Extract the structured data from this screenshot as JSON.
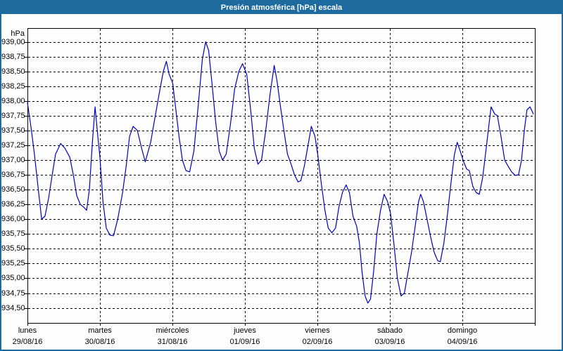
{
  "window": {
    "title": "Presión atmosférica [hPa] escala"
  },
  "chart_data": {
    "type": "line",
    "title": "Presión atmosférica [hPa] escala",
    "legend": "none",
    "grid": "dashed-black",
    "colors": {
      "titlebar": "#1E6C9F",
      "window_border": "#1E6C9F",
      "background": "#FDFEFD",
      "line": "#0000C8",
      "grid": "#000000",
      "text": "#000000"
    },
    "y_axis": {
      "unit_label": "hPa",
      "min": 934.5,
      "max": 939.0,
      "step": 0.25,
      "tick_labels": [
        "939,00",
        "938,75",
        "938,50",
        "938,25",
        "938,00",
        "937,75",
        "937,50",
        "937,25",
        "937,00",
        "936,75",
        "936,50",
        "936,25",
        "936,00",
        "935,75",
        "935,50",
        "935,25",
        "935,00",
        "934,75",
        "934,50"
      ]
    },
    "x_axis": {
      "total_hours": 168,
      "days": [
        {
          "name": "lunes",
          "date": "29/08/16"
        },
        {
          "name": "martes",
          "date": "30/08/16"
        },
        {
          "name": "miércoles",
          "date": "31/08/16"
        },
        {
          "name": "jueves",
          "date": "01/09/16"
        },
        {
          "name": "viernes",
          "date": "02/09/16"
        },
        {
          "name": "sábado",
          "date": "03/09/16"
        },
        {
          "name": "domingo",
          "date": "04/09/16"
        }
      ]
    },
    "series": [
      {
        "name": "Presión atmosférica [hPa]",
        "color": "#0000C8",
        "points": [
          [
            0,
            937.97
          ],
          [
            1.2,
            937.55
          ],
          [
            2.3,
            937.1
          ],
          [
            3.5,
            936.55
          ],
          [
            4.7,
            936.0
          ],
          [
            5.8,
            936.05
          ],
          [
            7.0,
            936.35
          ],
          [
            8.2,
            936.75
          ],
          [
            9.3,
            937.1
          ],
          [
            11.0,
            937.28
          ],
          [
            12.4,
            937.2
          ],
          [
            14.0,
            937.05
          ],
          [
            15.2,
            936.75
          ],
          [
            16.3,
            936.4
          ],
          [
            17.5,
            936.25
          ],
          [
            18.7,
            936.2
          ],
          [
            19.6,
            936.15
          ],
          [
            20.5,
            936.5
          ],
          [
            21.5,
            937.3
          ],
          [
            22.4,
            937.9
          ],
          [
            23.3,
            937.4
          ],
          [
            24.0,
            937.05
          ],
          [
            25.0,
            936.3
          ],
          [
            26.1,
            935.85
          ],
          [
            27.3,
            935.73
          ],
          [
            28.5,
            935.72
          ],
          [
            29.9,
            936.0
          ],
          [
            31.5,
            936.45
          ],
          [
            32.7,
            936.9
          ],
          [
            33.8,
            937.4
          ],
          [
            35.0,
            937.57
          ],
          [
            36.4,
            937.5
          ],
          [
            37.8,
            937.2
          ],
          [
            39.0,
            936.97
          ],
          [
            40.8,
            937.3
          ],
          [
            42.5,
            937.8
          ],
          [
            43.9,
            938.2
          ],
          [
            45.0,
            938.5
          ],
          [
            46.0,
            938.67
          ],
          [
            46.9,
            938.45
          ],
          [
            48.1,
            938.3
          ],
          [
            48.8,
            938.0
          ],
          [
            50.2,
            937.4
          ],
          [
            51.3,
            937.0
          ],
          [
            52.5,
            936.82
          ],
          [
            53.7,
            936.8
          ],
          [
            55.1,
            937.15
          ],
          [
            56.5,
            937.9
          ],
          [
            57.9,
            938.7
          ],
          [
            59.0,
            939.0
          ],
          [
            60.0,
            938.85
          ],
          [
            61.1,
            938.3
          ],
          [
            62.3,
            937.65
          ],
          [
            63.5,
            937.15
          ],
          [
            64.6,
            937.0
          ],
          [
            65.8,
            937.1
          ],
          [
            67.2,
            937.6
          ],
          [
            68.6,
            938.2
          ],
          [
            70.0,
            938.5
          ],
          [
            71.2,
            938.63
          ],
          [
            72.6,
            938.45
          ],
          [
            74.0,
            937.8
          ],
          [
            75.1,
            937.2
          ],
          [
            76.3,
            936.93
          ],
          [
            77.5,
            937.0
          ],
          [
            78.9,
            937.5
          ],
          [
            80.3,
            938.1
          ],
          [
            81.7,
            938.6
          ],
          [
            82.6,
            938.35
          ],
          [
            83.8,
            937.9
          ],
          [
            84.9,
            937.5
          ],
          [
            86.1,
            937.1
          ],
          [
            87.3,
            936.93
          ],
          [
            88.4,
            936.75
          ],
          [
            89.6,
            936.63
          ],
          [
            90.5,
            936.65
          ],
          [
            91.7,
            936.9
          ],
          [
            92.9,
            937.25
          ],
          [
            94.0,
            937.57
          ],
          [
            95.2,
            937.4
          ],
          [
            96.1,
            937.1
          ],
          [
            97.3,
            936.6
          ],
          [
            98.5,
            936.15
          ],
          [
            99.6,
            935.85
          ],
          [
            100.8,
            935.77
          ],
          [
            102.0,
            935.85
          ],
          [
            103.1,
            936.2
          ],
          [
            104.3,
            936.45
          ],
          [
            105.5,
            936.58
          ],
          [
            106.6,
            936.45
          ],
          [
            107.8,
            936.05
          ],
          [
            109.0,
            935.88
          ],
          [
            109.9,
            935.6
          ],
          [
            110.8,
            935.1
          ],
          [
            111.8,
            934.7
          ],
          [
            112.7,
            934.58
          ],
          [
            113.6,
            934.65
          ],
          [
            114.6,
            935.1
          ],
          [
            115.7,
            935.75
          ],
          [
            116.9,
            936.15
          ],
          [
            118.1,
            936.42
          ],
          [
            119.2,
            936.3
          ],
          [
            120.2,
            936.1
          ],
          [
            121.3,
            935.6
          ],
          [
            122.5,
            935.0
          ],
          [
            123.7,
            934.7
          ],
          [
            124.8,
            934.75
          ],
          [
            126.0,
            935.1
          ],
          [
            127.2,
            935.45
          ],
          [
            128.3,
            935.85
          ],
          [
            129.5,
            936.3
          ],
          [
            130.2,
            936.42
          ],
          [
            131.1,
            936.3
          ],
          [
            132.3,
            936.0
          ],
          [
            133.5,
            935.7
          ],
          [
            134.6,
            935.45
          ],
          [
            135.8,
            935.3
          ],
          [
            136.7,
            935.28
          ],
          [
            137.9,
            935.6
          ],
          [
            139.1,
            936.1
          ],
          [
            140.2,
            936.6
          ],
          [
            141.4,
            937.1
          ],
          [
            142.3,
            937.3
          ],
          [
            143.3,
            937.15
          ],
          [
            144.2,
            937.0
          ],
          [
            145.4,
            936.85
          ],
          [
            146.3,
            936.82
          ],
          [
            147.5,
            936.55
          ],
          [
            148.6,
            936.45
          ],
          [
            149.6,
            936.42
          ],
          [
            150.7,
            936.7
          ],
          [
            151.9,
            937.2
          ],
          [
            152.8,
            937.6
          ],
          [
            153.5,
            937.9
          ],
          [
            154.7,
            937.78
          ],
          [
            155.6,
            937.75
          ],
          [
            156.8,
            937.4
          ],
          [
            158.0,
            937.0
          ],
          [
            159.1,
            936.9
          ],
          [
            160.3,
            936.8
          ],
          [
            161.5,
            936.74
          ],
          [
            162.6,
            936.75
          ],
          [
            163.6,
            937.0
          ],
          [
            164.5,
            937.5
          ],
          [
            165.4,
            937.85
          ],
          [
            166.4,
            937.9
          ],
          [
            167.5,
            937.78
          ]
        ]
      }
    ]
  }
}
